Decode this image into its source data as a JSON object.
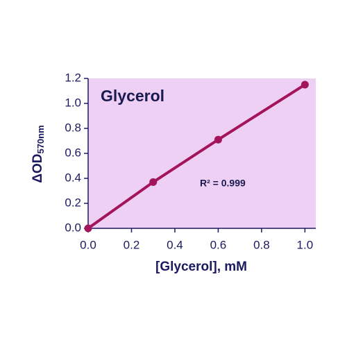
{
  "chart_data": {
    "type": "line",
    "title": "Glycerol",
    "xlabel": "[Glycerol], mM",
    "ylabel": {
      "main": "ΔOD",
      "sub": "570nm"
    },
    "annotation": "R² = 0.999",
    "x": [
      0,
      0.3,
      0.6,
      1.0
    ],
    "series": [
      {
        "color": "#a3145a",
        "values": [
          0,
          0.37,
          0.71,
          1.15
        ]
      }
    ],
    "xlim": [
      0,
      1.05
    ],
    "ylim": [
      0,
      1.2
    ],
    "xticks": [
      {
        "value": 0,
        "label": "0.0"
      },
      {
        "value": 0.2,
        "label": "0.2"
      },
      {
        "value": 0.4,
        "label": "0.4"
      },
      {
        "value": 0.6,
        "label": "0.6"
      },
      {
        "value": 0.8,
        "label": "0.8"
      },
      {
        "value": 1.0,
        "label": "1.0"
      }
    ],
    "yticks": [
      {
        "value": 0,
        "label": "0.0"
      },
      {
        "value": 0.2,
        "label": "0.2"
      },
      {
        "value": 0.4,
        "label": "0.4"
      },
      {
        "value": 0.6,
        "label": "0.6"
      },
      {
        "value": 0.8,
        "label": "0.8"
      },
      {
        "value": 1.0,
        "label": "1.0"
      },
      {
        "value": 1.2,
        "label": "1.2"
      }
    ],
    "background": "#efd0f5"
  }
}
